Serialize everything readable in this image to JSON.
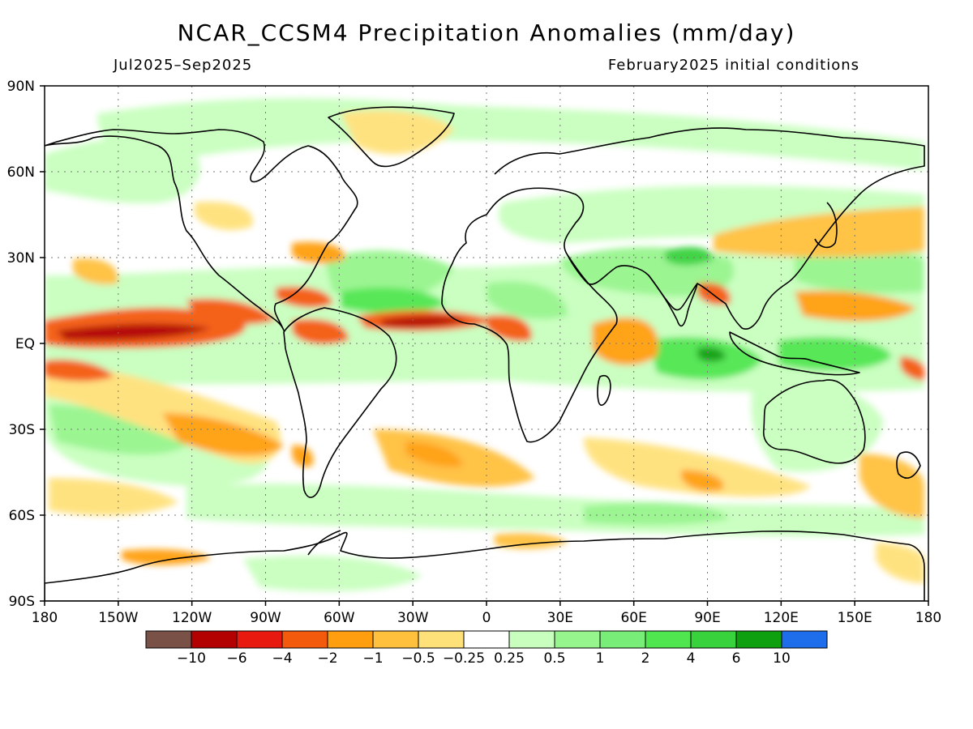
{
  "title": "NCAR_CCSM4 Precipitation Anomalies (mm/day)",
  "period": "Jul2025–Sep2025",
  "init": "February2025 initial conditions",
  "lat_ticks": [
    {
      "value": 90,
      "label": "90N"
    },
    {
      "value": 60,
      "label": "60N"
    },
    {
      "value": 30,
      "label": "30N"
    },
    {
      "value": 0,
      "label": "EQ"
    },
    {
      "value": -30,
      "label": "30S"
    },
    {
      "value": -60,
      "label": "60S"
    },
    {
      "value": -90,
      "label": "90S"
    }
  ],
  "lon_ticks": [
    {
      "value": -180,
      "label": "180"
    },
    {
      "value": -150,
      "label": "150W"
    },
    {
      "value": -120,
      "label": "120W"
    },
    {
      "value": -90,
      "label": "90W"
    },
    {
      "value": -60,
      "label": "60W"
    },
    {
      "value": -30,
      "label": "30W"
    },
    {
      "value": 0,
      "label": "0"
    },
    {
      "value": 30,
      "label": "30E"
    },
    {
      "value": 60,
      "label": "60E"
    },
    {
      "value": 90,
      "label": "90E"
    },
    {
      "value": 120,
      "label": "120E"
    },
    {
      "value": 150,
      "label": "150E"
    },
    {
      "value": 180,
      "label": "180"
    }
  ],
  "colorbar": {
    "colors": [
      "#7a5147",
      "#b30000",
      "#e8190f",
      "#f45a0c",
      "#ff9f0f",
      "#ffc03d",
      "#ffe17a",
      "#ffffff",
      "#c8ffbe",
      "#96f58c",
      "#78ee78",
      "#50e650",
      "#37d23c",
      "#0fa00f",
      "#1e6eeb"
    ],
    "labels": [
      "−10",
      "−6",
      "−4",
      "−2",
      "−1",
      "−0.5",
      "−0.25",
      "0.25",
      "0.5",
      "1",
      "2",
      "4",
      "6",
      "10"
    ]
  },
  "anomaly_colors": {
    "dry_strong": "#b30000",
    "dry_med": "#f45a0c",
    "dry_light": "#ff9f0f",
    "dry_faint": "#ffe17a",
    "wet_faint": "#c8ffbe",
    "wet_light": "#96f58c",
    "wet_med": "#50e650",
    "wet_strong": "#0fa00f"
  }
}
